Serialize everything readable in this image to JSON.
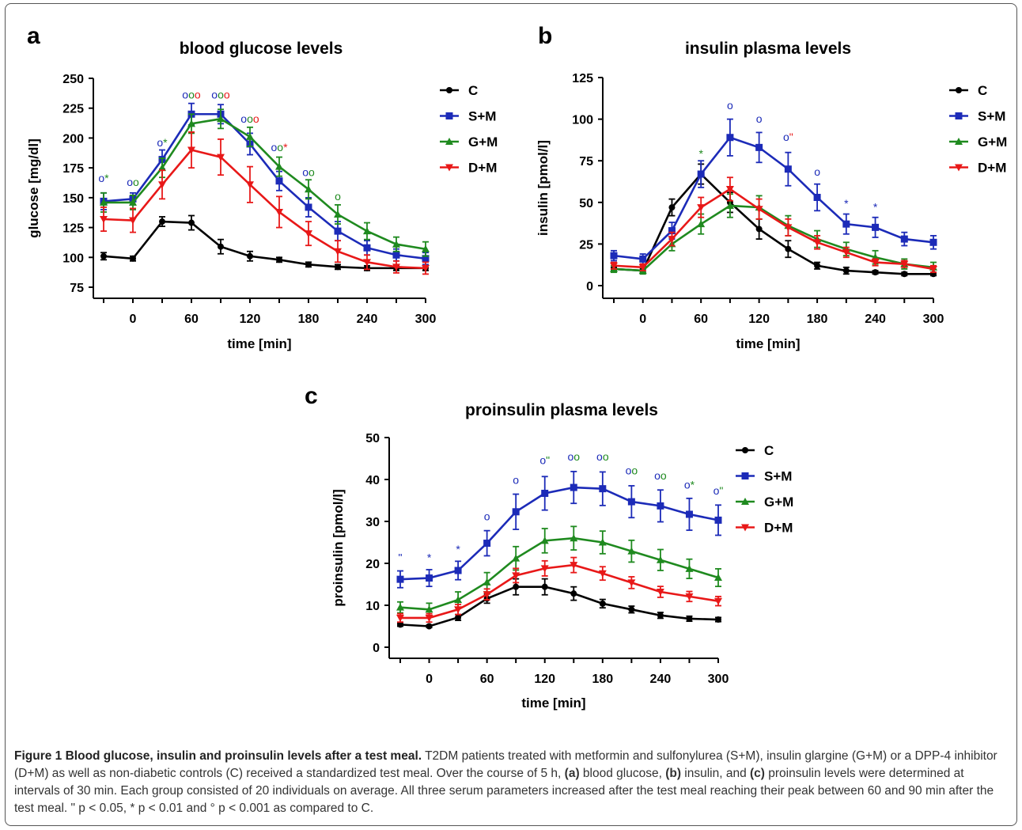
{
  "chart_data": [
    {
      "panel": "a",
      "type": "line",
      "title": "blood glucose levels",
      "xlabel": "time [min]",
      "ylabel": "glucose [mg/dl]",
      "x": [
        -30,
        0,
        30,
        60,
        90,
        120,
        150,
        180,
        210,
        240,
        270,
        300
      ],
      "xticks": [
        "0",
        "60",
        "120",
        "180",
        "240",
        "300"
      ],
      "yticks": [
        "75",
        "100",
        "125",
        "150",
        "175",
        "200",
        "225",
        "250"
      ],
      "ylim": [
        75,
        250
      ],
      "series": [
        {
          "name": "C",
          "color": "#000000",
          "marker": "circle",
          "values": [
            101,
            99,
            130,
            129,
            109,
            101,
            98,
            94,
            92,
            91,
            91,
            91
          ],
          "errors": [
            3,
            2,
            4,
            6,
            6,
            4,
            2,
            2,
            2,
            2,
            2,
            2
          ]
        },
        {
          "name": "S+M",
          "color": "#1c2bb8",
          "marker": "square",
          "values": [
            147,
            149,
            182,
            220,
            220,
            195,
            164,
            142,
            122,
            108,
            102,
            99
          ],
          "errors": [
            7,
            5,
            8,
            9,
            8,
            9,
            8,
            8,
            8,
            6,
            5,
            5
          ]
        },
        {
          "name": "G+M",
          "color": "#1f8a1f",
          "marker": "triangle-up",
          "values": [
            146,
            146,
            175,
            212,
            216,
            201,
            176,
            157,
            136,
            122,
            111,
            107
          ],
          "errors": [
            8,
            6,
            8,
            8,
            8,
            8,
            8,
            8,
            8,
            7,
            6,
            6
          ]
        },
        {
          "name": "D+M",
          "color": "#e81818",
          "marker": "triangle-down",
          "values": [
            132,
            131,
            161,
            190,
            184,
            161,
            138,
            120,
            105,
            96,
            92,
            91
          ],
          "errors": [
            10,
            10,
            12,
            15,
            15,
            15,
            13,
            10,
            9,
            6,
            5,
            5
          ]
        }
      ],
      "annotations": [
        {
          "x": -30,
          "y": 163,
          "parts": [
            {
              "t": "o",
              "c": "#1c2bb8"
            },
            {
              "t": "*",
              "c": "#1f8a1f"
            }
          ]
        },
        {
          "x": 0,
          "y": 160,
          "parts": [
            {
              "t": "o",
              "c": "#1c2bb8"
            },
            {
              "t": "o",
              "c": "#1f8a1f"
            }
          ]
        },
        {
          "x": 30,
          "y": 193,
          "parts": [
            {
              "t": "o",
              "c": "#1c2bb8"
            },
            {
              "t": "*",
              "c": "#1f8a1f"
            }
          ]
        },
        {
          "x": 60,
          "y": 233,
          "parts": [
            {
              "t": "o",
              "c": "#1c2bb8"
            },
            {
              "t": "o",
              "c": "#1f8a1f"
            },
            {
              "t": "o",
              "c": "#e81818"
            }
          ]
        },
        {
          "x": 90,
          "y": 233,
          "parts": [
            {
              "t": "o",
              "c": "#1c2bb8"
            },
            {
              "t": "o",
              "c": "#1f8a1f"
            },
            {
              "t": "o",
              "c": "#e81818"
            }
          ]
        },
        {
          "x": 120,
          "y": 213,
          "parts": [
            {
              "t": "o",
              "c": "#1c2bb8"
            },
            {
              "t": "o",
              "c": "#1f8a1f"
            },
            {
              "t": "o",
              "c": "#e81818"
            }
          ]
        },
        {
          "x": 150,
          "y": 189,
          "parts": [
            {
              "t": "o",
              "c": "#1c2bb8"
            },
            {
              "t": "o",
              "c": "#1f8a1f"
            },
            {
              "t": "*",
              "c": "#e81818"
            }
          ]
        },
        {
          "x": 180,
          "y": 168,
          "parts": [
            {
              "t": "o",
              "c": "#1c2bb8"
            },
            {
              "t": "o",
              "c": "#1f8a1f"
            }
          ]
        },
        {
          "x": 210,
          "y": 148,
          "parts": [
            {
              "t": "o",
              "c": "#1f8a1f"
            }
          ]
        }
      ]
    },
    {
      "panel": "b",
      "type": "line",
      "title": "insulin plasma levels",
      "xlabel": "time [min]",
      "ylabel": "insulin [pmol/l]",
      "x": [
        -30,
        0,
        30,
        60,
        90,
        120,
        150,
        180,
        210,
        240,
        270,
        300
      ],
      "xticks": [
        "0",
        "60",
        "120",
        "180",
        "240",
        "300"
      ],
      "yticks": [
        "0",
        "25",
        "50",
        "75",
        "100",
        "125"
      ],
      "ylim": [
        0,
        125
      ],
      "series": [
        {
          "name": "C",
          "color": "#000000",
          "marker": "circle",
          "values": [
            10,
            9,
            47,
            67,
            50,
            34,
            22,
            12,
            9,
            8,
            7,
            7
          ],
          "errors": [
            1,
            1,
            5,
            6,
            6,
            6,
            5,
            2,
            2,
            1,
            1,
            1
          ]
        },
        {
          "name": "S+M",
          "color": "#1c2bb8",
          "marker": "square",
          "values": [
            18,
            16,
            33,
            67,
            89,
            83,
            70,
            53,
            37,
            35,
            28,
            26
          ],
          "errors": [
            3,
            3,
            5,
            8,
            11,
            9,
            10,
            8,
            6,
            6,
            4,
            4
          ]
        },
        {
          "name": "G+M",
          "color": "#1f8a1f",
          "marker": "triangle-up",
          "values": [
            10,
            9,
            25,
            37,
            48,
            47,
            36,
            28,
            22,
            17,
            13,
            11
          ],
          "errors": [
            2,
            2,
            4,
            6,
            7,
            7,
            6,
            5,
            4,
            4,
            3,
            3
          ]
        },
        {
          "name": "D+M",
          "color": "#e81818",
          "marker": "triangle-down",
          "values": [
            12,
            11,
            28,
            47,
            58,
            46,
            35,
            26,
            20,
            14,
            13,
            10
          ],
          "errors": [
            2,
            2,
            4,
            6,
            7,
            6,
            5,
            4,
            3,
            2,
            2,
            2
          ]
        }
      ],
      "annotations": [
        {
          "x": 60,
          "y": 77,
          "parts": [
            {
              "t": "*",
              "c": "#1f8a1f"
            }
          ]
        },
        {
          "x": 90,
          "y": 106,
          "parts": [
            {
              "t": "o",
              "c": "#1c2bb8"
            }
          ]
        },
        {
          "x": 120,
          "y": 98,
          "parts": [
            {
              "t": "o",
              "c": "#1c2bb8"
            }
          ]
        },
        {
          "x": 150,
          "y": 87,
          "parts": [
            {
              "t": "o",
              "c": "#1c2bb8"
            },
            {
              "t": "\"",
              "c": "#e81818"
            }
          ]
        },
        {
          "x": 180,
          "y": 66,
          "parts": [
            {
              "t": "o",
              "c": "#1c2bb8"
            }
          ]
        },
        {
          "x": 210,
          "y": 47,
          "parts": [
            {
              "t": "*",
              "c": "#1c2bb8"
            }
          ]
        },
        {
          "x": 240,
          "y": 45,
          "parts": [
            {
              "t": "*",
              "c": "#1c2bb8"
            }
          ]
        }
      ]
    },
    {
      "panel": "c",
      "type": "line",
      "title": "proinsulin plasma levels",
      "xlabel": "time [min]",
      "ylabel": "proinsulin [pmol/l]",
      "x": [
        -30,
        0,
        30,
        60,
        90,
        120,
        150,
        180,
        210,
        240,
        270,
        300
      ],
      "xticks": [
        "0",
        "60",
        "120",
        "180",
        "240",
        "300"
      ],
      "yticks": [
        "0",
        "10",
        "20",
        "30",
        "40",
        "50"
      ],
      "ylim": [
        0,
        50
      ],
      "series": [
        {
          "name": "C",
          "color": "#000000",
          "marker": "circle",
          "values": [
            5.4,
            5.0,
            7.1,
            11.6,
            14.4,
            14.4,
            12.8,
            10.4,
            9.0,
            7.6,
            6.8,
            6.6
          ],
          "errors": [
            0.4,
            0.3,
            0.7,
            1.1,
            1.9,
            1.9,
            1.6,
            1.0,
            0.8,
            0.7,
            0.6,
            0.5
          ]
        },
        {
          "name": "S+M",
          "color": "#1c2bb8",
          "marker": "square",
          "values": [
            16.2,
            16.5,
            18.3,
            24.8,
            32.3,
            36.7,
            38.1,
            37.8,
            34.7,
            33.7,
            31.7,
            30.3
          ],
          "errors": [
            2.0,
            2.0,
            2.2,
            3.0,
            4.2,
            4.0,
            3.8,
            4.0,
            3.8,
            3.8,
            3.8,
            3.6
          ]
        },
        {
          "name": "G+M",
          "color": "#1f8a1f",
          "marker": "triangle-up",
          "values": [
            9.5,
            9.0,
            11.3,
            15.5,
            21.2,
            25.4,
            26.0,
            25.0,
            22.9,
            20.8,
            18.7,
            16.6
          ],
          "errors": [
            1.3,
            1.5,
            1.9,
            2.3,
            2.8,
            2.9,
            2.8,
            2.7,
            2.6,
            2.5,
            2.3,
            2.1
          ]
        },
        {
          "name": "D+M",
          "color": "#e81818",
          "marker": "triangle-down",
          "values": [
            7.0,
            7.0,
            9.0,
            12.6,
            17.1,
            18.8,
            19.6,
            17.6,
            15.4,
            13.2,
            12.1,
            11.0
          ],
          "errors": [
            1.0,
            1.0,
            1.2,
            1.3,
            1.7,
            1.8,
            1.8,
            1.6,
            1.4,
            1.3,
            1.2,
            1.1
          ]
        }
      ],
      "annotations": [
        {
          "x": -30,
          "y": 20.5,
          "parts": [
            {
              "t": "\"",
              "c": "#1c2bb8"
            }
          ]
        },
        {
          "x": 0,
          "y": 20.5,
          "parts": [
            {
              "t": "*",
              "c": "#1c2bb8"
            }
          ]
        },
        {
          "x": 30,
          "y": 22.5,
          "parts": [
            {
              "t": "*",
              "c": "#1c2bb8"
            }
          ]
        },
        {
          "x": 60,
          "y": 30.3,
          "parts": [
            {
              "t": "o",
              "c": "#1c2bb8"
            }
          ]
        },
        {
          "x": 90,
          "y": 39.0,
          "parts": [
            {
              "t": "o",
              "c": "#1c2bb8"
            }
          ]
        },
        {
          "x": 120,
          "y": 43.7,
          "parts": [
            {
              "t": "o",
              "c": "#1c2bb8"
            },
            {
              "t": "\"",
              "c": "#1f8a1f"
            }
          ]
        },
        {
          "x": 150,
          "y": 44.5,
          "parts": [
            {
              "t": "o",
              "c": "#1c2bb8"
            },
            {
              "t": "o",
              "c": "#1f8a1f"
            }
          ]
        },
        {
          "x": 180,
          "y": 44.5,
          "parts": [
            {
              "t": "o",
              "c": "#1c2bb8"
            },
            {
              "t": "o",
              "c": "#1f8a1f"
            }
          ]
        },
        {
          "x": 210,
          "y": 41.2,
          "parts": [
            {
              "t": "o",
              "c": "#1c2bb8"
            },
            {
              "t": "o",
              "c": "#1f8a1f"
            }
          ]
        },
        {
          "x": 240,
          "y": 40.0,
          "parts": [
            {
              "t": "o",
              "c": "#1c2bb8"
            },
            {
              "t": "o",
              "c": "#1f8a1f"
            }
          ]
        },
        {
          "x": 270,
          "y": 37.8,
          "parts": [
            {
              "t": "o",
              "c": "#1c2bb8"
            },
            {
              "t": "*",
              "c": "#1f8a1f"
            }
          ]
        },
        {
          "x": 300,
          "y": 36.4,
          "parts": [
            {
              "t": "o",
              "c": "#1c2bb8"
            },
            {
              "t": "\"",
              "c": "#1f8a1f"
            }
          ]
        }
      ]
    }
  ],
  "caption": {
    "title": "Figure 1 Blood glucose, insulin and proinsulin levels after a test meal.",
    "segments": [
      {
        "text": " T2DM patients treated with metformin and sulfonylurea (S+M), insulin glargine (G+M) or a DPP-4 inhibitor (D+M) as well as non-diabetic controls (C) received a standardized test meal. Over the course of 5 h, ",
        "bold": false
      },
      {
        "text": "(a)",
        "bold": true
      },
      {
        "text": " blood glucose, ",
        "bold": false
      },
      {
        "text": "(b)",
        "bold": true
      },
      {
        "text": " insulin, and ",
        "bold": false
      },
      {
        "text": "(c)",
        "bold": true
      },
      {
        "text": " proinsulin levels were determined at intervals of 30 min. Each group consisted of 20 individuals on average. All three serum parameters increased after the test meal reaching their peak between 60 and 90 min after the test meal. \" p < 0.05, * p < 0.01 and ° p < 0.001 as compared to C.",
        "bold": false
      }
    ]
  }
}
